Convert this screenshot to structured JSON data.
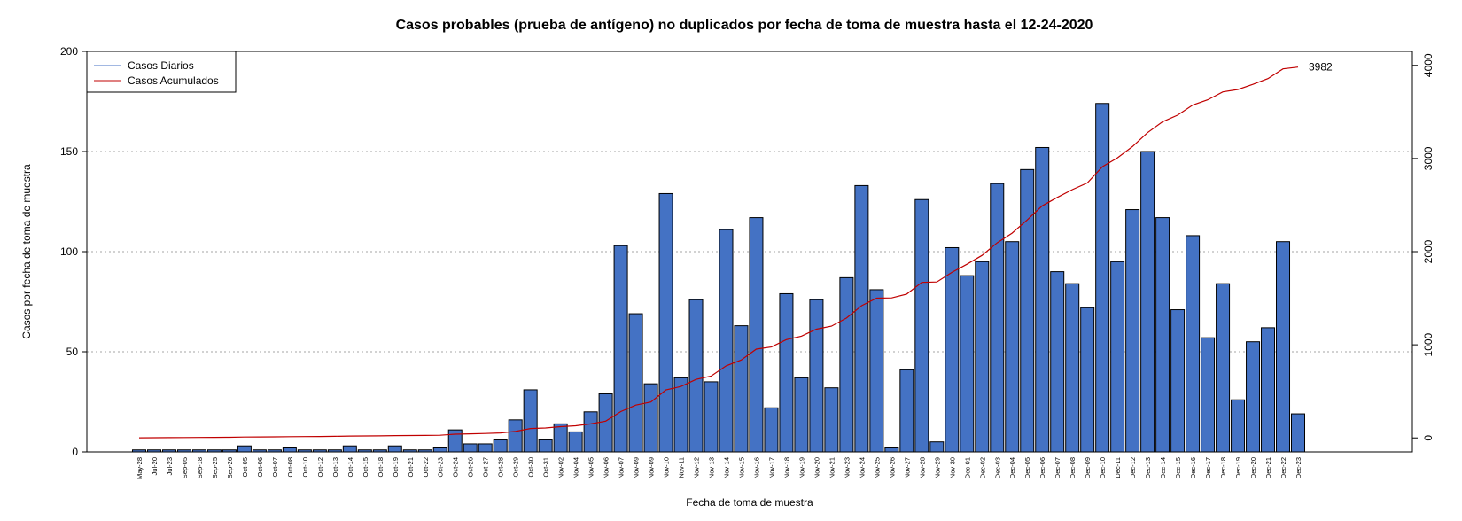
{
  "chart_data": {
    "type": "bar",
    "title": "Casos probables (prueba de antígeno) no duplicados por fecha de toma de muestra hasta el 12-24-2020",
    "xlabel": "Fecha de toma de muestra",
    "ylabel": "Casos por fecha de toma de muestra",
    "ylim": [
      0,
      200
    ],
    "y2lim": [
      -150,
      4150
    ],
    "yticks": [
      "0",
      "50",
      "100",
      "150",
      "200"
    ],
    "y2ticks": [
      "0",
      "1000",
      "2000",
      "3000",
      "4000"
    ],
    "grid": true,
    "legend_position": "top-left",
    "categories": [
      "May-28",
      "Jul-20",
      "Jul-23",
      "Sep-05",
      "Sep-18",
      "Sep-25",
      "Sep-26",
      "Oct-05",
      "Oct-06",
      "Oct-07",
      "Oct-08",
      "Oct-10",
      "Oct-12",
      "Oct-13",
      "Oct-14",
      "Oct-15",
      "Oct-18",
      "Oct-19",
      "Oct-21",
      "Oct-22",
      "Oct-23",
      "Oct-24",
      "Oct-26",
      "Oct-27",
      "Oct-28",
      "Oct-29",
      "Oct-30",
      "Oct-31",
      "Nov-02",
      "Nov-04",
      "Nov-05",
      "Nov-06",
      "Nov-07",
      "Nov-09",
      "Nov-09",
      "Nov-10",
      "Nov-11",
      "Nov-12",
      "Nov-13",
      "Nov-14",
      "Nov-15",
      "Nov-16",
      "Nov-17",
      "Nov-18",
      "Nov-19",
      "Nov-20",
      "Nov-21",
      "Nov-23",
      "Nov-24",
      "Nov-25",
      "Nov-26",
      "Nov-27",
      "Nov-28",
      "Nov-29",
      "Nov-30",
      "Dec-01",
      "Dec-02",
      "Dec-03",
      "Dec-04",
      "Dec-05",
      "Dec-06",
      "Dec-07",
      "Dec-08",
      "Dec-09",
      "Dec-10",
      "Dec-11",
      "Dec-12",
      "Dec-13",
      "Dec-14",
      "Dec-15",
      "Dec-16",
      "Dec-17",
      "Dec-18",
      "Dec-19",
      "Dec-20",
      "Dec-21",
      "Dec-22",
      "Dec-23"
    ],
    "series": [
      {
        "name": "Casos Diarios",
        "type": "bar",
        "color": "#4472c4",
        "values": [
          1,
          1,
          1,
          1,
          1,
          1,
          1,
          3,
          1,
          1,
          2,
          1,
          1,
          1,
          3,
          1,
          1,
          3,
          1,
          1,
          2,
          11,
          4,
          4,
          6,
          16,
          31,
          6,
          14,
          10,
          20,
          29,
          103,
          69,
          34,
          129,
          37,
          76,
          35,
          111,
          63,
          117,
          22,
          79,
          37,
          76,
          32,
          87,
          133,
          81,
          2,
          41,
          126,
          5,
          102,
          88,
          95,
          134,
          105,
          141,
          152,
          90,
          84,
          72,
          174,
          95,
          121,
          150,
          117,
          71,
          108,
          57,
          84,
          26,
          55,
          62,
          105,
          19
        ]
      },
      {
        "name": "Casos Acumulados",
        "type": "line",
        "color": "#c00000",
        "axis": "right"
      }
    ],
    "annotations": [
      {
        "text": "3982"
      }
    ]
  }
}
